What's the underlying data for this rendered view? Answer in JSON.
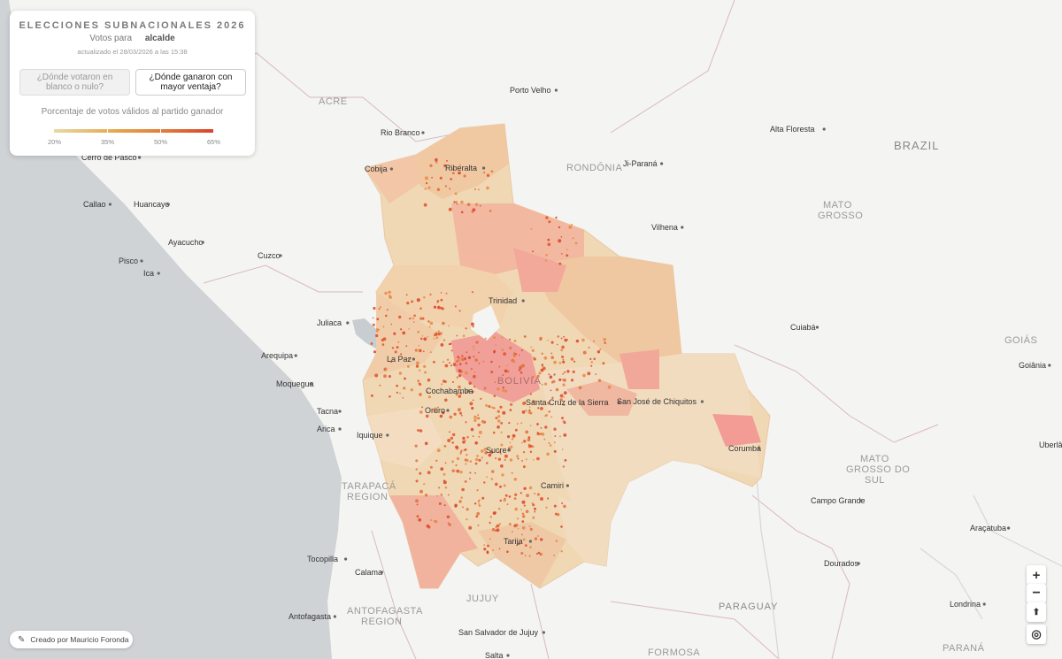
{
  "panel": {
    "title": "ELECCIONES SUBNACIONALES 2026",
    "votes_prefix": "Votos para",
    "votes_value": "alcalde",
    "updated": "actualizado el 28/03/2026 a las 15:38",
    "button_blank": "¿Dónde votaron en blanco o nulo?",
    "button_margin": "¿Dónde ganaron con mayor ventaja?",
    "legend_title": "Porcentaje de votos válidos al partido ganador",
    "legend_ticks": [
      "20%",
      "35%",
      "50%",
      "65%"
    ]
  },
  "controls": {
    "zoom_in": "+",
    "zoom_out": "−",
    "compass": "⬆"
  },
  "credit": "Creado por Mauricio Foronda",
  "colors": {
    "low": "#ead8a2",
    "mid": "#e5a64a",
    "high": "#e27a3a",
    "max": "#d9432c",
    "ocean": "#cfd3d6",
    "land": "#f4f4f2"
  },
  "labels": {
    "countries": [
      "BRAZIL",
      "BOLIVIA",
      "PARAGUAY"
    ],
    "regions": [
      "ACRE",
      "RONDÔNIA",
      "MATO GROSSO",
      "MATO GROSSO DO SUL",
      "GOIÁS",
      "TARAPACÁ REGION",
      "ANTOFAGASTA REGION",
      "JUJUY",
      "FORMOSA",
      "PARANÁ"
    ],
    "cities": [
      "Cerro de Pasco",
      "Callao",
      "Huancayo",
      "Ayacucho",
      "Pisco",
      "Ica",
      "Cuzco",
      "Juliaca",
      "Arequipa",
      "Moquegua",
      "Tacna",
      "Arica",
      "Iquique",
      "Tocopilla",
      "Calama",
      "Antofagasta",
      "Cobija",
      "Riberalta",
      "Rio Branco",
      "Porto Velho",
      "Ji-Paraná",
      "Vilhena",
      "Alta Floresta",
      "Trinidad",
      "La Paz",
      "Cochabamba",
      "Oruro",
      "Sucre",
      "Santa Cruz de la Sierra",
      "San José de Chiquitos",
      "Camiri",
      "Tarija",
      "Corumbá",
      "Cuiabá",
      "Campo Grande",
      "Dourados",
      "Goiânia",
      "Uberlâ",
      "Araçatuba",
      "Londrina",
      "San Salvador de Jujuy",
      "Salta"
    ]
  }
}
